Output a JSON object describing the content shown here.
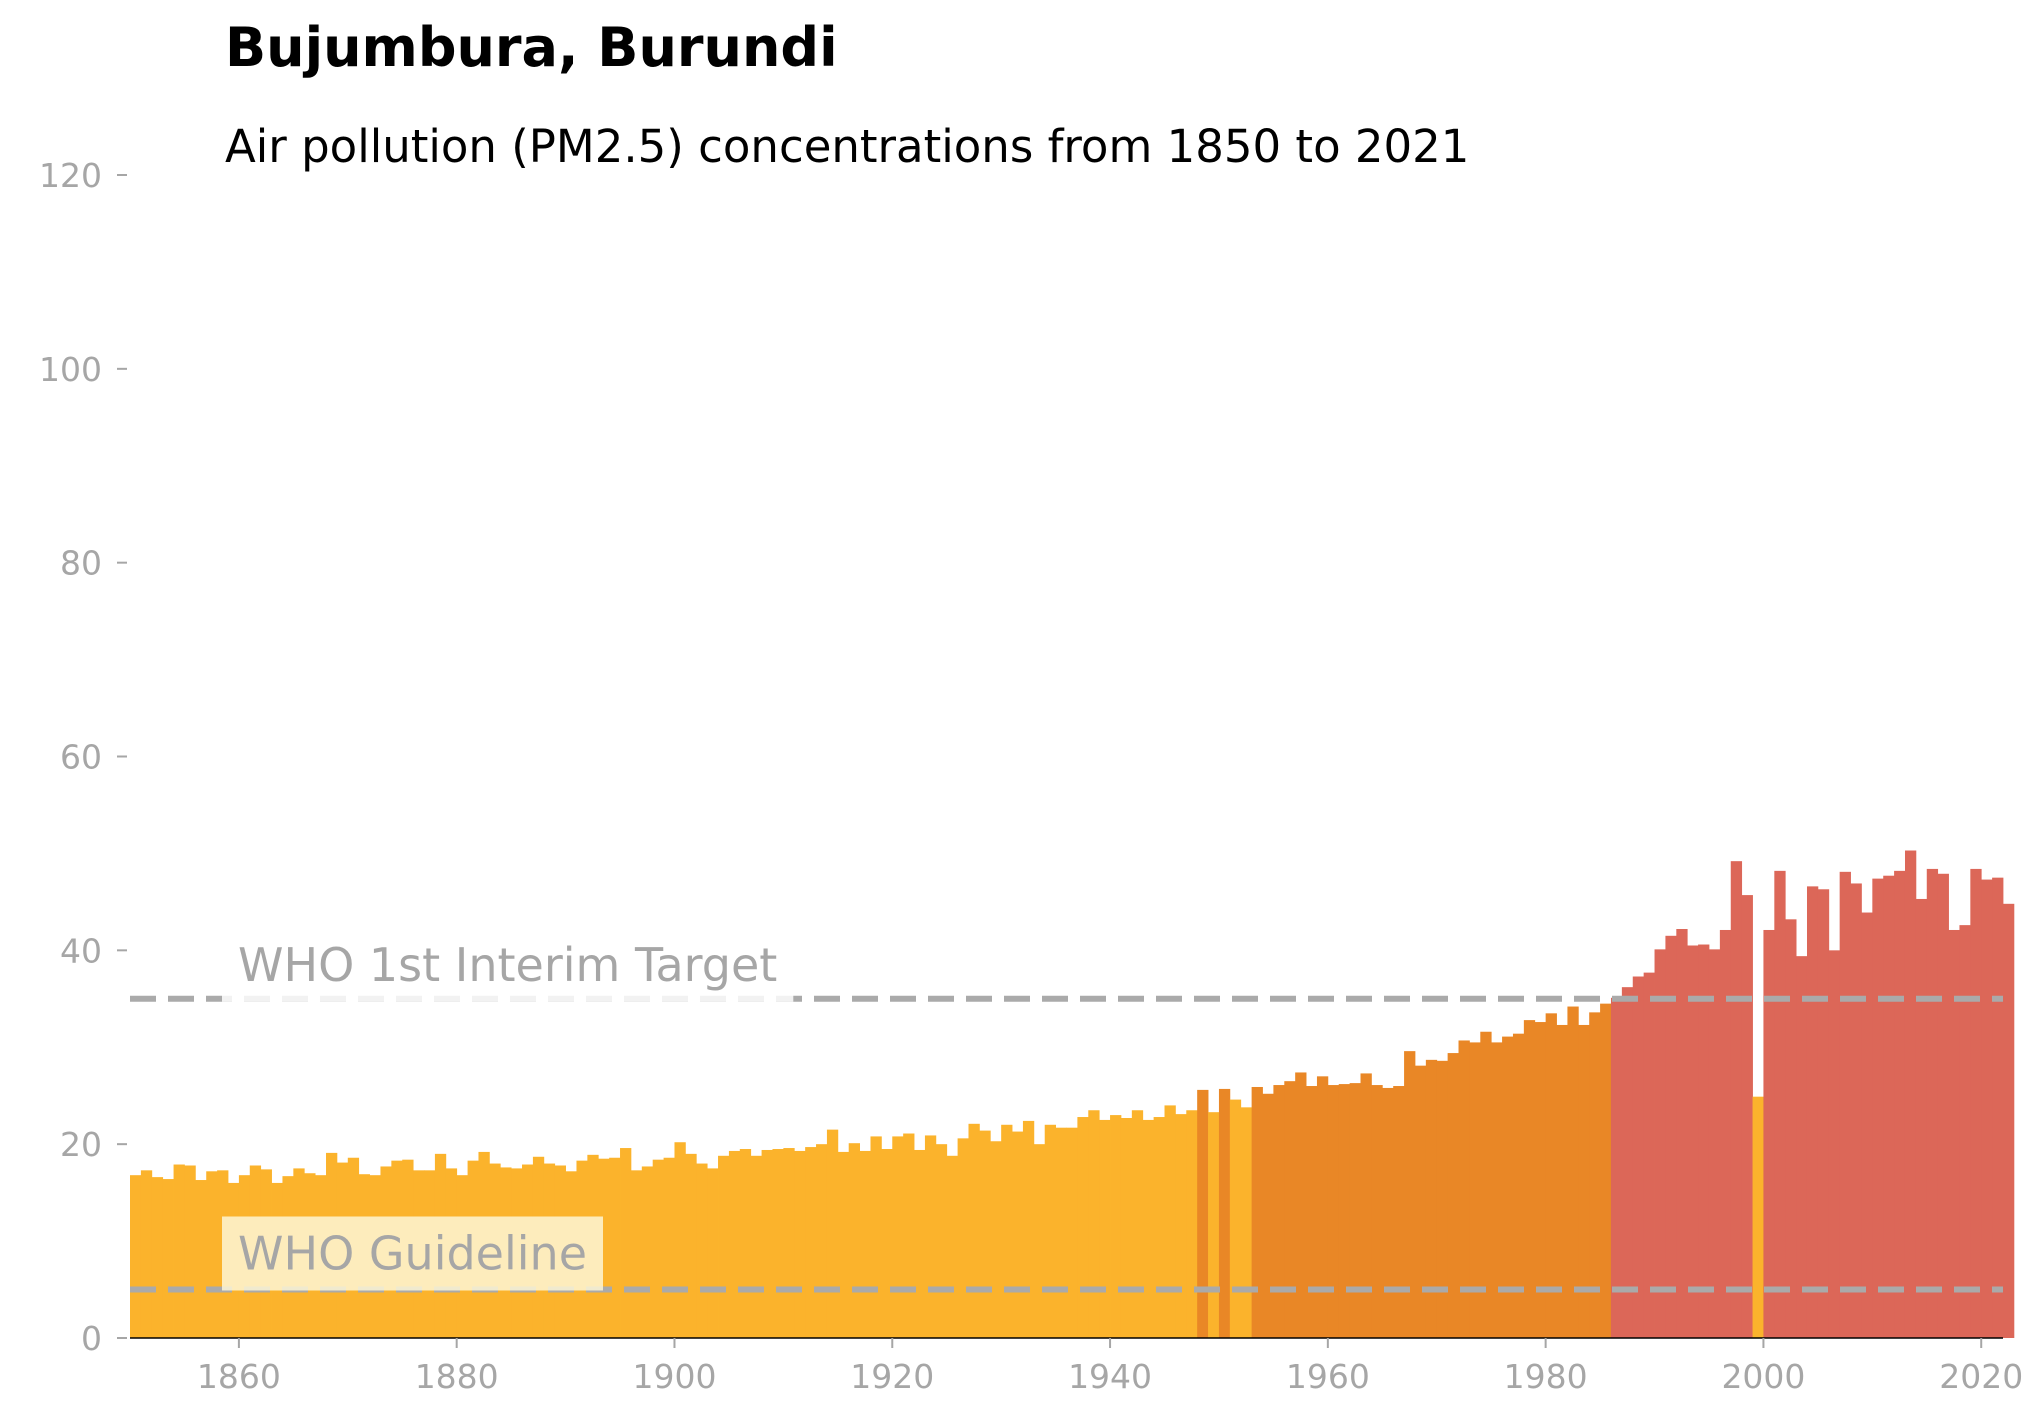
{
  "title": "Bujumbura, Burundi",
  "subtitle": "Air pollution (PM2.5) concentrations from 1850 to 2021",
  "chart_data": {
    "type": "bar",
    "xlim": [
      1850,
      2022
    ],
    "ylim": [
      0,
      120
    ],
    "xticks": [
      1860,
      1880,
      1900,
      1920,
      1940,
      1960,
      1980,
      2000,
      2020
    ],
    "yticks": [
      0,
      20,
      40,
      60,
      80,
      100,
      120
    ],
    "grid": false,
    "colors": {
      "below_15": "#f9e046",
      "15_to_25": "#fbb32c",
      "25_to_35": "#e98726",
      "above_35": "#dc6758",
      "reference_line": "#aaaaaa",
      "label_box": "#fdf6d6"
    },
    "reference_lines": [
      {
        "label": "WHO 1st Interim Target",
        "value": 35
      },
      {
        "label": "WHO Guideline",
        "value": 5
      }
    ],
    "years_start": 1850,
    "values": [
      16.8,
      17.3,
      16.6,
      16.4,
      17.9,
      17.8,
      16.3,
      17.2,
      17.3,
      16.0,
      16.8,
      17.8,
      17.4,
      16.0,
      16.7,
      17.5,
      17.0,
      16.8,
      19.1,
      18.1,
      18.6,
      16.9,
      16.8,
      17.7,
      18.3,
      18.4,
      17.3,
      17.3,
      19.0,
      17.5,
      16.8,
      18.3,
      19.2,
      18.0,
      17.6,
      17.5,
      17.9,
      18.7,
      18.0,
      17.8,
      17.2,
      18.3,
      18.9,
      18.5,
      18.6,
      19.6,
      17.3,
      17.7,
      18.4,
      18.6,
      20.2,
      19.0,
      18.0,
      17.5,
      18.8,
      19.3,
      19.5,
      18.8,
      19.4,
      19.5,
      19.6,
      19.3,
      19.7,
      20.0,
      21.5,
      19.2,
      20.1,
      19.3,
      20.8,
      19.5,
      20.8,
      21.1,
      19.4,
      20.9,
      20.0,
      18.8,
      20.6,
      22.1,
      21.4,
      20.3,
      22.0,
      21.3,
      22.4,
      20.0,
      22.0,
      21.7,
      21.7,
      22.8,
      23.5,
      22.5,
      23.0,
      22.7,
      23.5,
      22.5,
      22.8,
      24.0,
      23.1,
      23.5,
      25.6,
      23.3,
      25.7,
      24.6,
      23.8,
      25.9,
      25.2,
      26.1,
      26.5,
      27.4,
      26.0,
      27.0,
      26.1,
      26.2,
      26.3,
      27.3,
      26.1,
      25.8,
      26.0,
      29.6,
      28.1,
      28.7,
      28.6,
      29.4,
      30.7,
      30.5,
      31.6,
      30.5,
      31.1,
      31.4,
      32.8,
      32.6,
      33.5,
      32.3,
      34.2,
      32.3,
      33.6,
      34.5,
      35.1,
      36.2,
      37.3,
      37.7,
      40.1,
      41.5,
      42.2,
      40.5,
      40.6,
      40.1,
      42.1,
      49.2,
      45.7,
      24.9,
      42.1,
      48.2,
      43.2,
      39.4,
      46.6,
      46.3,
      40.0,
      48.1,
      46.9,
      43.9,
      47.4,
      47.7,
      48.2,
      50.3,
      45.3,
      48.4,
      47.9,
      42.1,
      42.6,
      48.4,
      47.3,
      47.5,
      44.8
    ]
  }
}
